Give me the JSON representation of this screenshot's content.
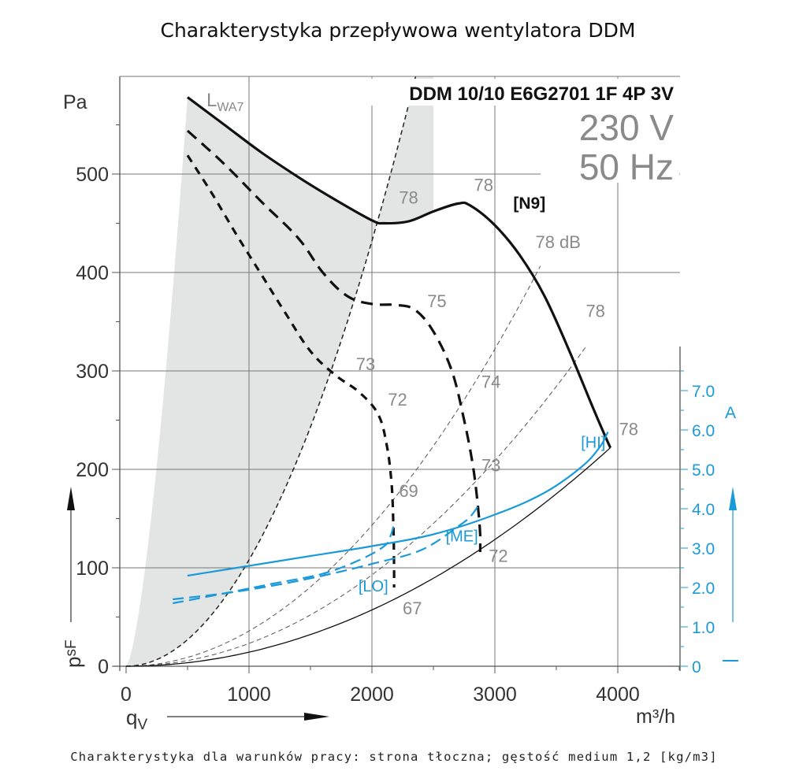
{
  "chart_data": {
    "type": "line",
    "title": "Charakterystyka przepływowa wentylatora DDM",
    "footer": "Charakterystyka dla warunków pracy: strona tłoczna; gęstość medium 1,2 [kg/m3]",
    "model": "DDM 10/10 E6G2701 1F 4P 3V",
    "voltage": "230 V",
    "frequency": "50 Hz",
    "xlabel": "q",
    "xlabel_sub": "V",
    "xunit": "m³/h",
    "ylabel": "p",
    "ylabel_sub": "sF",
    "yunit": "Pa",
    "y2unit": "A",
    "xlim": [
      0,
      4500
    ],
    "ylim": [
      0,
      580
    ],
    "y2lim": [
      0,
      11.6
    ],
    "grid": true,
    "x_ticks": [
      0,
      1000,
      2000,
      3000,
      4000
    ],
    "x_tick_labels": [
      "0",
      "1000",
      "2000",
      "3000",
      "4000"
    ],
    "y_ticks": [
      0,
      100,
      200,
      300,
      400,
      500
    ],
    "y_tick_labels": [
      "0",
      "100",
      "200",
      "300",
      "400",
      "500"
    ],
    "y2_ticks": [
      0,
      1,
      2,
      3,
      4,
      5,
      6,
      7
    ],
    "y2_tick_labels": [
      "0",
      "1.0",
      "2.0",
      "3.0",
      "4.0",
      "5.0",
      "6.0",
      "7.0"
    ],
    "sound_power_label": "L",
    "sound_power_sub": "WA7",
    "colors": {
      "pressure": "#111111",
      "current": "#1a9ad9",
      "shade": "#e3e4e4",
      "system_line": "#555555",
      "db_text": "#8a8a8a"
    },
    "pressure_series": [
      {
        "name": "[N9]",
        "style": "solid",
        "x": [
          500,
          800,
          1100,
          1400,
          1700,
          2000,
          2100,
          2300,
          2500,
          2700,
          2800,
          3000,
          3200,
          3400,
          3600,
          3800,
          3900,
          3940
        ],
        "y": [
          578,
          550,
          522,
          497,
          474,
          453,
          450,
          452,
          462,
          470,
          468,
          448,
          418,
          377,
          322,
          262,
          233,
          222
        ]
      },
      {
        "name": "[ME]",
        "style": "dashed",
        "x": [
          500,
          800,
          1100,
          1400,
          1600,
          1800,
          2000,
          2200,
          2350,
          2500,
          2650,
          2750,
          2820,
          2860,
          2880,
          2880
        ],
        "y": [
          544,
          510,
          472,
          435,
          400,
          376,
          368,
          367,
          362,
          340,
          300,
          250,
          205,
          165,
          135,
          116
        ]
      },
      {
        "name": "[LO]",
        "style": "dashed",
        "x": [
          500,
          700,
          900,
          1100,
          1300,
          1500,
          1700,
          1900,
          2050,
          2120,
          2160,
          2175,
          2180,
          2180
        ],
        "y": [
          519,
          480,
          438,
          398,
          358,
          320,
          296,
          278,
          256,
          225,
          185,
          140,
          100,
          80
        ]
      }
    ],
    "current_series": [
      {
        "name": "[HI]",
        "style": "solid",
        "x": [
          500,
          1000,
          1500,
          2000,
          2500,
          3000,
          3400,
          3700,
          3850,
          3920
        ],
        "y": [
          2.3,
          2.55,
          2.8,
          3.05,
          3.35,
          3.85,
          4.4,
          5.05,
          5.55,
          5.95
        ]
      },
      {
        "name": "[ME]",
        "style": "dashed",
        "x": [
          380,
          800,
          1200,
          1600,
          2000,
          2400,
          2700,
          2800,
          2870
        ],
        "y": [
          1.7,
          1.85,
          2.05,
          2.3,
          2.6,
          2.95,
          3.55,
          3.8,
          4.1
        ]
      },
      {
        "name": "[LO]",
        "style": "dashed",
        "x": [
          380,
          800,
          1200,
          1600,
          1900,
          2100,
          2150,
          2180
        ],
        "y": [
          1.6,
          1.85,
          2.1,
          2.35,
          2.7,
          3.05,
          3.3,
          3.6
        ]
      }
    ],
    "system_curves": [
      {
        "k": 0.000108,
        "x_end": 2500,
        "style": "dashed-bold",
        "label": ""
      },
      {
        "k": 3.58e-05,
        "x_end": 3370,
        "style": "dashed",
        "label": ""
      },
      {
        "k": 2.32e-05,
        "x_end": 3750,
        "style": "dashed",
        "label": ""
      },
      {
        "k": 1.43e-05,
        "x_end": 3940,
        "style": "solid",
        "label": ""
      }
    ],
    "db_labels": [
      {
        "text": "78",
        "x": 2220,
        "y": 470
      },
      {
        "text": "78",
        "x": 2830,
        "y": 483
      },
      {
        "text": "78 dB",
        "x": 3330,
        "y": 425
      },
      {
        "text": "78",
        "x": 3740,
        "y": 355
      },
      {
        "text": "78",
        "x": 4010,
        "y": 235
      },
      {
        "text": "75",
        "x": 2450,
        "y": 365
      },
      {
        "text": "74",
        "x": 2890,
        "y": 283
      },
      {
        "text": "73",
        "x": 1870,
        "y": 301
      },
      {
        "text": "72",
        "x": 2130,
        "y": 265
      },
      {
        "text": "73",
        "x": 2890,
        "y": 198
      },
      {
        "text": "69",
        "x": 2220,
        "y": 172
      },
      {
        "text": "72",
        "x": 2950,
        "y": 106
      },
      {
        "text": "67",
        "x": 2250,
        "y": 53
      }
    ],
    "speed_labels": [
      {
        "text": "[N9]",
        "x": 3150,
        "y": 465,
        "color": "black"
      },
      {
        "text": "[HI]",
        "x": 3700,
        "y": 222,
        "color": "blue"
      },
      {
        "text": "[ME]",
        "x": 2600,
        "y": 127,
        "color": "blue"
      },
      {
        "text": "[LO]",
        "x": 1890,
        "y": 76,
        "color": "blue"
      }
    ]
  }
}
